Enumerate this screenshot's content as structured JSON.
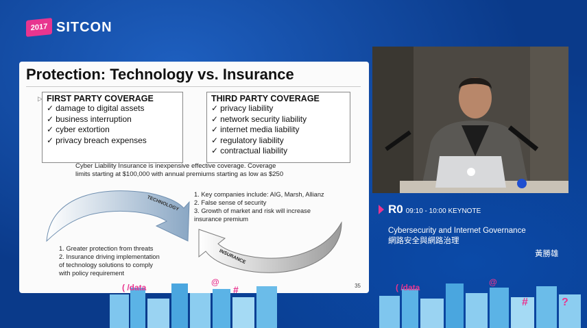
{
  "logo": {
    "year": "2017",
    "name": "SITCON"
  },
  "slide": {
    "title": "Protection: Technology vs. Insurance",
    "first_party": {
      "heading": "FIRST PARTY COVERAGE",
      "items": [
        "damage to digital assets",
        "business interruption",
        "cyber extortion",
        "privacy breach expenses"
      ]
    },
    "third_party": {
      "heading": "THIRD PARTY COVERAGE",
      "items": [
        "privacy liability",
        "network security liability",
        "internet media liability",
        "regulatory liability",
        "contractual liability"
      ]
    },
    "note_line1": "Cyber Liability Insurance is inexpensive effective coverage.  Coverage",
    "note_line2": "limits starting at $100,000  with annual premiums starting as low as $250",
    "insurance_points": [
      "1.  Key companies include: AIG, Marsh, Allianz",
      "2.  False sense of security",
      "3.  Growth of market and risk will increase",
      "     insurance premium"
    ],
    "technology_points": [
      "1.  Greater protection from threats",
      "2.  Insurance driving implementation",
      "     of technology solutions  to comply",
      "     with policy requirement"
    ],
    "arrow_technology_label": "TECHNOLOGY",
    "arrow_insurance_label": "INSURANCE",
    "page_number": "35"
  },
  "session": {
    "room": "R0",
    "time": "09:10 - 10:00 KEYNOTE",
    "title_en": "Cybersecurity and Internet Governance",
    "title_zh": "網路安全與網路治理",
    "speaker": "黃勝雄"
  },
  "colors": {
    "background": "#0a3a8a",
    "accent": "#e8358f",
    "slide": "#fbfbfb"
  }
}
